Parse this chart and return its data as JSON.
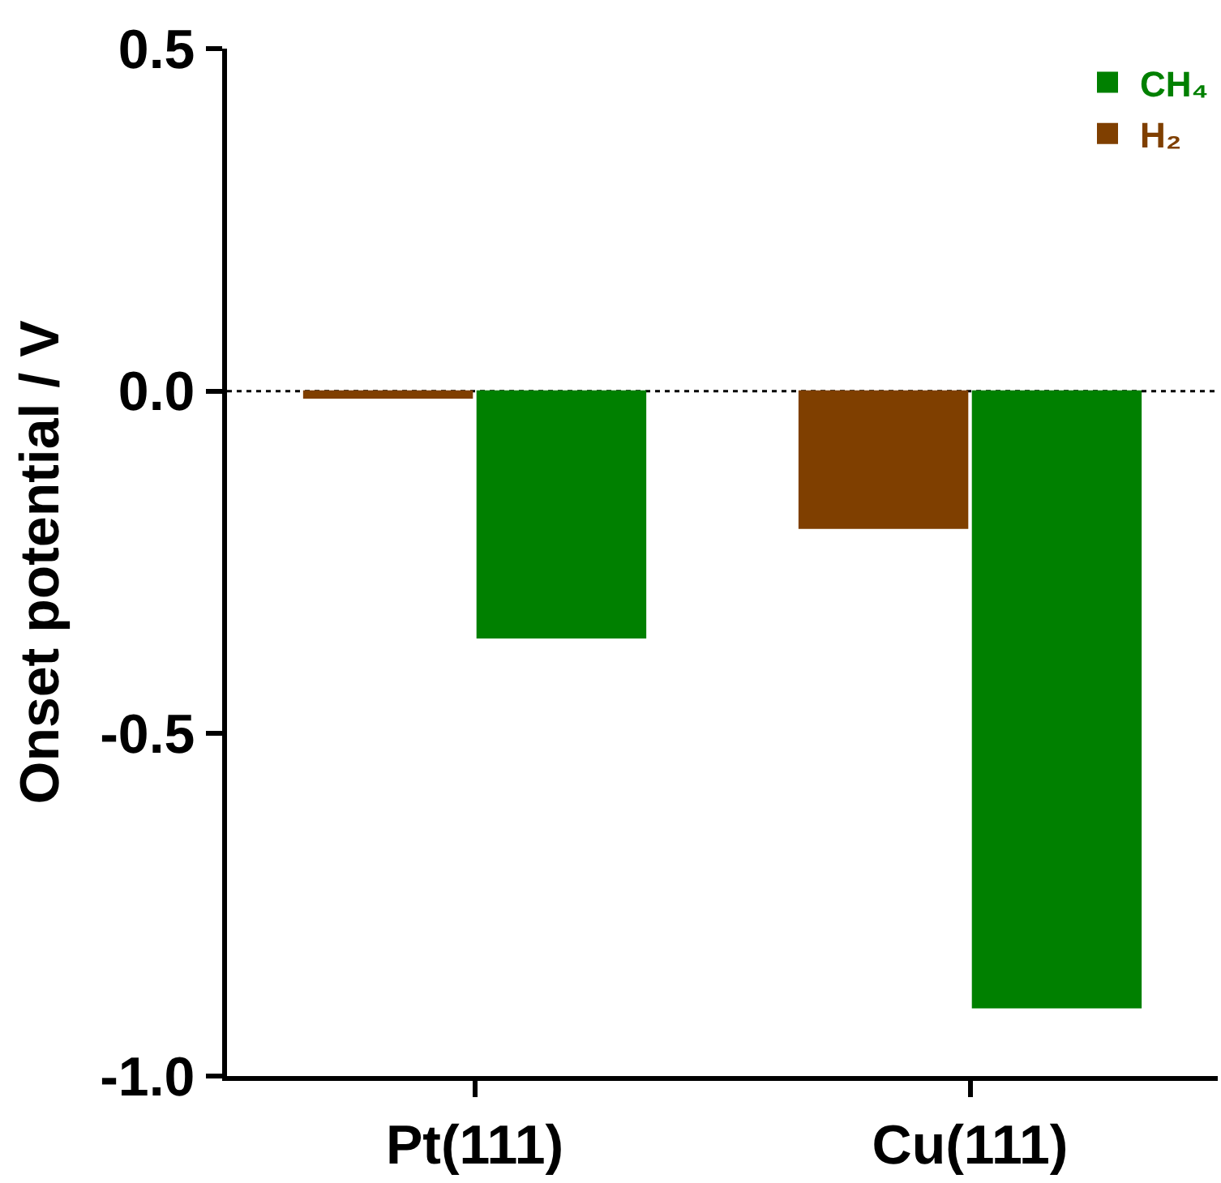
{
  "chart_data": {
    "type": "bar",
    "ylabel": "Onset potential / V",
    "categories": [
      "Pt(111)",
      "Cu(111)"
    ],
    "series": [
      {
        "name": "H₂",
        "color": "#7f3f00",
        "values": [
          -0.01,
          -0.2
        ]
      },
      {
        "name": "CH₄",
        "color": "#008000",
        "values": [
          -0.36,
          -0.9
        ]
      }
    ],
    "ylim": [
      -1.0,
      0.5
    ],
    "yticks": [
      {
        "value": -1.0,
        "label": "-1.0"
      },
      -0.5,
      {
        "value": 0,
        "label": "0.0"
      },
      0.5
    ],
    "ref_lines": [
      {
        "axis": "y",
        "value": 0,
        "color": "#000000",
        "line_style": "dotted"
      }
    ],
    "legend": "top right",
    "grid": false
  }
}
